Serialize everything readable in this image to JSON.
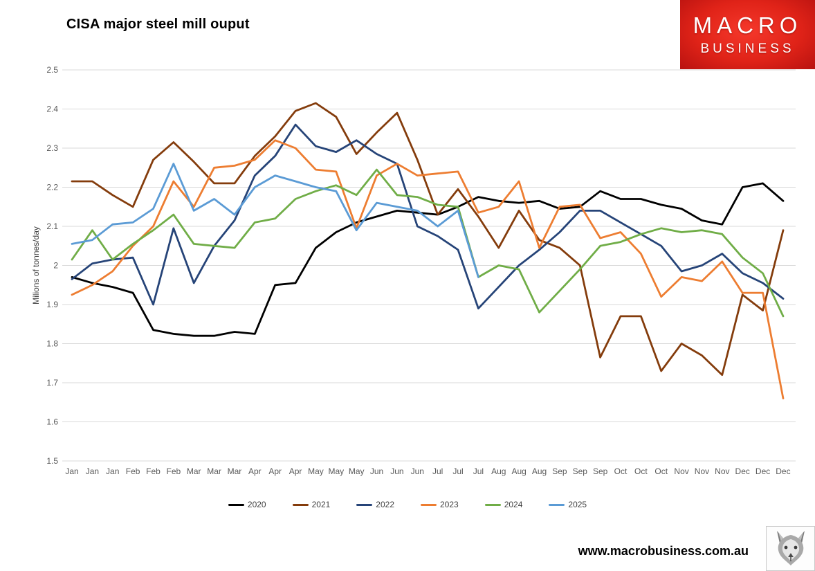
{
  "header": {
    "title": "CISA major steel mill ouput"
  },
  "logo": {
    "line1": "MACRO",
    "line2": "BUSINESS",
    "bg_color": "#e02318",
    "text_color": "#ffffff"
  },
  "footer": {
    "url": "www.macrobusiness.com.au"
  },
  "icons": {
    "wolf_logo": "wolf-head"
  },
  "chart_data": {
    "type": "line",
    "title": "CISA major steel mill ouput",
    "xlabel": "",
    "ylabel": "Milions of tonnes/day",
    "ylim": [
      1.5,
      2.5
    ],
    "grid": true,
    "legend_position": "bottom",
    "axis_text_color": "#595959",
    "grid_color": "#d9d9d9",
    "yticks": [
      {
        "value": 2.5,
        "label": "2.5"
      },
      {
        "value": 2.4,
        "label": "2.4"
      },
      {
        "value": 2.3,
        "label": "2.3"
      },
      {
        "value": 2.2,
        "label": "2.2"
      },
      {
        "value": 2.1,
        "label": "2.1"
      },
      {
        "value": 2.0,
        "label": "2"
      },
      {
        "value": 1.9,
        "label": "1.9"
      },
      {
        "value": 1.8,
        "label": "1.8"
      },
      {
        "value": 1.7,
        "label": "1.7"
      },
      {
        "value": 1.6,
        "label": "1.6"
      },
      {
        "value": 1.5,
        "label": "1.5"
      }
    ],
    "x_labels": [
      "Jan",
      "Jan",
      "Jan",
      "Feb",
      "Feb",
      "Feb",
      "Mar",
      "Mar",
      "Mar",
      "Apr",
      "Apr",
      "Apr",
      "May",
      "May",
      "May",
      "Jun",
      "Jun",
      "Jun",
      "Jul",
      "Jul",
      "Jul",
      "Aug",
      "Aug",
      "Aug",
      "Sep",
      "Sep",
      "Sep",
      "Oct",
      "Oct",
      "Oct",
      "Nov",
      "Nov",
      "Nov",
      "Dec",
      "Dec",
      "Dec"
    ],
    "series": [
      {
        "name": "2020",
        "color": "#000000",
        "values": [
          1.97,
          1.955,
          1.945,
          1.93,
          1.835,
          1.825,
          1.82,
          1.82,
          1.83,
          1.825,
          1.95,
          1.955,
          2.045,
          2.085,
          2.11,
          2.125,
          2.14,
          2.135,
          2.13,
          2.15,
          2.175,
          2.165,
          2.16,
          2.165,
          2.145,
          2.15,
          2.19,
          2.17,
          2.17,
          2.155,
          2.145,
          2.115,
          2.105,
          2.2,
          2.21,
          2.165
        ]
      },
      {
        "name": "2021",
        "color": "#843c0c",
        "values": [
          2.215,
          2.215,
          2.18,
          2.15,
          2.27,
          2.315,
          2.265,
          2.21,
          2.21,
          2.28,
          2.33,
          2.395,
          2.415,
          2.38,
          2.285,
          2.34,
          2.39,
          2.27,
          2.13,
          2.195,
          2.125,
          2.045,
          2.14,
          2.065,
          2.045,
          2.0,
          1.765,
          1.87,
          1.87,
          1.73,
          1.8,
          1.77,
          1.72,
          1.925,
          1.885,
          2.09
        ]
      },
      {
        "name": "2022",
        "color": "#264478",
        "values": [
          1.965,
          2.005,
          2.015,
          2.02,
          1.9,
          2.095,
          1.955,
          2.05,
          2.115,
          2.23,
          2.28,
          2.36,
          2.305,
          2.29,
          2.32,
          2.285,
          2.26,
          2.1,
          2.075,
          2.04,
          1.89,
          1.945,
          2.0,
          2.04,
          2.085,
          2.14,
          2.14,
          2.11,
          2.08,
          2.05,
          1.985,
          2.0,
          2.03,
          1.98,
          1.955,
          1.915
        ]
      },
      {
        "name": "2023",
        "color": "#ed7d31",
        "values": [
          1.925,
          1.95,
          1.985,
          2.05,
          2.1,
          2.215,
          2.15,
          2.25,
          2.255,
          2.27,
          2.32,
          2.3,
          2.245,
          2.24,
          2.095,
          2.23,
          2.26,
          2.23,
          2.235,
          2.24,
          2.135,
          2.15,
          2.215,
          2.045,
          2.15,
          2.155,
          2.07,
          2.085,
          2.03,
          1.92,
          1.97,
          1.96,
          2.01,
          1.93,
          1.93,
          1.66
        ]
      },
      {
        "name": "2024",
        "color": "#70ad47",
        "values": [
          2.015,
          2.09,
          2.015,
          2.055,
          2.09,
          2.13,
          2.055,
          2.05,
          2.045,
          2.11,
          2.12,
          2.17,
          2.19,
          2.205,
          2.18,
          2.245,
          2.18,
          2.175,
          2.155,
          2.15,
          1.97,
          2.0,
          1.99,
          1.88,
          1.935,
          1.99,
          2.05,
          2.06,
          2.08,
          2.095,
          2.085,
          2.09,
          2.08,
          2.02,
          1.98,
          1.87
        ]
      },
      {
        "name": "2025",
        "color": "#5b9bd5",
        "values": [
          2.055,
          2.065,
          2.105,
          2.11,
          2.145,
          2.26,
          2.14,
          2.17,
          2.13,
          2.2,
          2.23,
          2.215,
          2.2,
          2.19,
          2.09,
          2.16,
          2.15,
          2.14,
          2.1,
          2.14,
          1.97,
          null,
          null,
          null,
          null,
          null,
          null,
          null,
          null,
          null,
          null,
          null,
          null,
          null,
          null,
          null
        ]
      }
    ]
  }
}
